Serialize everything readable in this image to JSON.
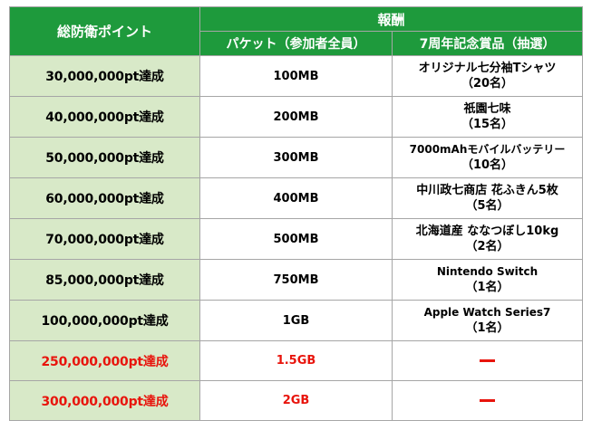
{
  "header": {
    "milestone_label": "総防衛ポイント",
    "reward_label": "報酬",
    "packet_label": "パケット（参加者全員）",
    "prize_label": "7周年記念賞品（抽選）"
  },
  "rows": [
    {
      "milestone": "30,000,000pt達成",
      "packet": "100MB",
      "prize_name": "オリジナル七分袖Tシャツ",
      "prize_count": "（20名）",
      "highlight": false
    },
    {
      "milestone": "40,000,000pt達成",
      "packet": "200MB",
      "prize_name": "祇園七味",
      "prize_count": "（15名）",
      "highlight": false
    },
    {
      "milestone": "50,000,000pt達成",
      "packet": "300MB",
      "prize_name": "7000mAhモバイルバッテリー",
      "prize_count": "（10名）",
      "highlight": false
    },
    {
      "milestone": "60,000,000pt達成",
      "packet": "400MB",
      "prize_name": "中川政七商店 花ふきん5枚",
      "prize_count": "（5名）",
      "highlight": false
    },
    {
      "milestone": "70,000,000pt達成",
      "packet": "500MB",
      "prize_name": "北海道産 ななつぼし10kg",
      "prize_count": "（2名）",
      "highlight": false
    },
    {
      "milestone": "85,000,000pt達成",
      "packet": "750MB",
      "prize_name": "Nintendo Switch",
      "prize_count": "（1名）",
      "highlight": false
    },
    {
      "milestone": "100,000,000pt達成",
      "packet": "1GB",
      "prize_name": "Apple Watch Series7",
      "prize_count": "（1名）",
      "highlight": false
    },
    {
      "milestone": "250,000,000pt達成",
      "packet": "1.5GB",
      "prize_name": "",
      "prize_count": "",
      "highlight": true
    },
    {
      "milestone": "300,000,000pt達成",
      "packet": "2GB",
      "prize_name": "",
      "prize_count": "",
      "highlight": true
    }
  ],
  "colors": {
    "header_bg": "#1e9a3c",
    "milestone_bg": "#d8e9c8",
    "highlight_text": "#e8140c",
    "border": "#a6a6a6"
  }
}
